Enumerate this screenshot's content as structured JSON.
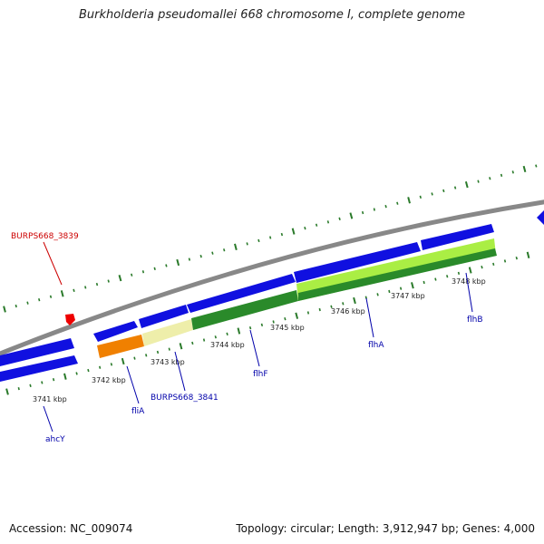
{
  "title": "Burkholderia pseudomallei 668 chromosome I, complete genome",
  "footer": {
    "accession": "Accession: NC_009074",
    "summary": "Topology: circular; Length: 3,912,947 bp; Genes: 4,000"
  },
  "colors": {
    "backbone": "#888888",
    "gene_forward": "#1010e0",
    "gene_label": "#0000aa",
    "highlight_label": "#cc0000",
    "tick": "#2a7a2a",
    "orange": "#f08000",
    "cream": "#eeeeaa",
    "green_dark": "#2a8a2a",
    "green_light": "#aaee44"
  },
  "kbp_labels": [
    "3741 kbp",
    "3742 kbp",
    "3743 kbp",
    "3744 kbp",
    "3745 kbp",
    "3746 kbp",
    "3747 kbp",
    "3748 kbp"
  ],
  "gene_labels": [
    {
      "text": "BURPS668_3839",
      "kind": "highlight"
    },
    {
      "text": "ahcY",
      "kind": "gene"
    },
    {
      "text": "fliA",
      "kind": "gene"
    },
    {
      "text": "BURPS668_3841",
      "kind": "gene"
    },
    {
      "text": "flhF",
      "kind": "gene"
    },
    {
      "text": "flhA",
      "kind": "gene"
    },
    {
      "text": "flhB",
      "kind": "gene"
    }
  ]
}
